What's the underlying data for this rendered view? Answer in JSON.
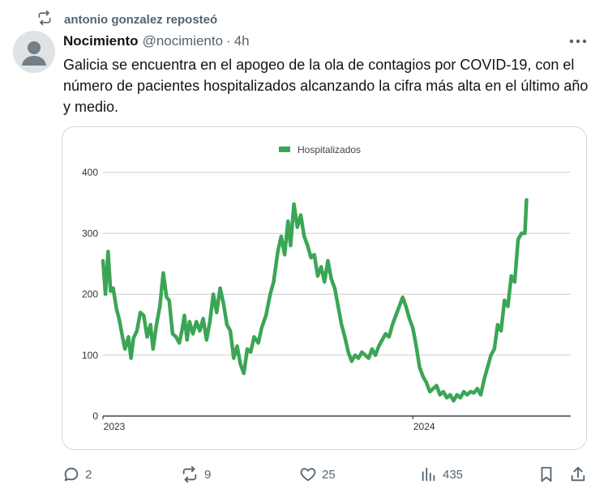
{
  "repost": {
    "label": "antonio gonzalez reposteó",
    "icon": "repost-icon"
  },
  "author": {
    "name": "Nocimiento",
    "handle": "@nocimiento",
    "separator": "·",
    "time": "4h",
    "avatar_icon": "default-avatar-icon"
  },
  "post": {
    "text": "Galicia se encuentra en el apogeo de la ola de contagios por COVID-19, con el número de pacientes hospitalizados alcanzando la cifra más alta en el último año y medio."
  },
  "actions": {
    "replies": "2",
    "reposts": "9",
    "likes": "25",
    "views": "435"
  },
  "colors": {
    "series": "#3aa655",
    "text_secondary": "#536471",
    "border": "#cfd9de"
  },
  "chart_data": {
    "type": "line",
    "title": "",
    "xlabel": "",
    "ylabel": "",
    "x_range": [
      "2023-01-01",
      "2024-07-05"
    ],
    "xtick_labels": [
      "2023",
      "2024"
    ],
    "xtick_dates": [
      "2023-01-01",
      "2024-01-01"
    ],
    "ylim": [
      0,
      400
    ],
    "yticks": [
      0,
      100,
      200,
      300,
      400
    ],
    "grid": true,
    "legend": "top-center",
    "series": [
      {
        "name": "Hospitalizados",
        "color": "#3aa655",
        "points": [
          [
            "2023-01-01",
            255
          ],
          [
            "2023-01-04",
            200
          ],
          [
            "2023-01-07",
            270
          ],
          [
            "2023-01-10",
            205
          ],
          [
            "2023-01-13",
            210
          ],
          [
            "2023-01-17",
            175
          ],
          [
            "2023-01-20",
            160
          ],
          [
            "2023-01-24",
            130
          ],
          [
            "2023-01-27",
            110
          ],
          [
            "2023-01-31",
            130
          ],
          [
            "2023-02-03",
            95
          ],
          [
            "2023-02-06",
            128
          ],
          [
            "2023-02-10",
            140
          ],
          [
            "2023-02-14",
            170
          ],
          [
            "2023-02-18",
            165
          ],
          [
            "2023-02-22",
            130
          ],
          [
            "2023-02-26",
            150
          ],
          [
            "2023-03-01",
            110
          ],
          [
            "2023-03-05",
            150
          ],
          [
            "2023-03-09",
            180
          ],
          [
            "2023-03-13",
            235
          ],
          [
            "2023-03-17",
            195
          ],
          [
            "2023-03-20",
            190
          ],
          [
            "2023-03-24",
            135
          ],
          [
            "2023-03-28",
            130
          ],
          [
            "2023-04-01",
            120
          ],
          [
            "2023-04-04",
            140
          ],
          [
            "2023-04-07",
            165
          ],
          [
            "2023-04-10",
            125
          ],
          [
            "2023-04-13",
            155
          ],
          [
            "2023-04-17",
            135
          ],
          [
            "2023-04-21",
            155
          ],
          [
            "2023-04-25",
            140
          ],
          [
            "2023-04-29",
            160
          ],
          [
            "2023-05-03",
            125
          ],
          [
            "2023-05-07",
            155
          ],
          [
            "2023-05-11",
            200
          ],
          [
            "2023-05-15",
            170
          ],
          [
            "2023-05-19",
            210
          ],
          [
            "2023-05-23",
            185
          ],
          [
            "2023-05-27",
            150
          ],
          [
            "2023-05-31",
            140
          ],
          [
            "2023-06-04",
            95
          ],
          [
            "2023-06-08",
            115
          ],
          [
            "2023-06-12",
            85
          ],
          [
            "2023-06-16",
            70
          ],
          [
            "2023-06-20",
            110
          ],
          [
            "2023-06-24",
            105
          ],
          [
            "2023-06-28",
            130
          ],
          [
            "2023-07-03",
            120
          ],
          [
            "2023-07-07",
            145
          ],
          [
            "2023-07-12",
            165
          ],
          [
            "2023-07-17",
            200
          ],
          [
            "2023-07-21",
            220
          ],
          [
            "2023-07-26",
            270
          ],
          [
            "2023-07-30",
            295
          ],
          [
            "2023-08-03",
            265
          ],
          [
            "2023-08-07",
            320
          ],
          [
            "2023-08-10",
            280
          ],
          [
            "2023-08-14",
            348
          ],
          [
            "2023-08-18",
            310
          ],
          [
            "2023-08-22",
            330
          ],
          [
            "2023-08-26",
            295
          ],
          [
            "2023-08-30",
            280
          ],
          [
            "2023-09-03",
            260
          ],
          [
            "2023-09-07",
            265
          ],
          [
            "2023-09-11",
            230
          ],
          [
            "2023-09-15",
            245
          ],
          [
            "2023-09-19",
            220
          ],
          [
            "2023-09-23",
            255
          ],
          [
            "2023-09-27",
            225
          ],
          [
            "2023-10-01",
            210
          ],
          [
            "2023-10-05",
            180
          ],
          [
            "2023-10-09",
            150
          ],
          [
            "2023-10-13",
            130
          ],
          [
            "2023-10-17",
            105
          ],
          [
            "2023-10-21",
            90
          ],
          [
            "2023-10-25",
            100
          ],
          [
            "2023-10-29",
            95
          ],
          [
            "2023-11-02",
            105
          ],
          [
            "2023-11-06",
            100
          ],
          [
            "2023-11-10",
            95
          ],
          [
            "2023-11-14",
            110
          ],
          [
            "2023-11-18",
            100
          ],
          [
            "2023-11-22",
            115
          ],
          [
            "2023-11-26",
            125
          ],
          [
            "2023-11-30",
            135
          ],
          [
            "2023-12-04",
            130
          ],
          [
            "2023-12-08",
            150
          ],
          [
            "2023-12-12",
            165
          ],
          [
            "2023-12-16",
            180
          ],
          [
            "2023-12-20",
            195
          ],
          [
            "2023-12-24",
            180
          ],
          [
            "2023-12-28",
            160
          ],
          [
            "2024-01-01",
            145
          ],
          [
            "2024-01-05",
            115
          ],
          [
            "2024-01-09",
            80
          ],
          [
            "2024-01-13",
            65
          ],
          [
            "2024-01-17",
            55
          ],
          [
            "2024-01-21",
            40
          ],
          [
            "2024-01-25",
            45
          ],
          [
            "2024-01-29",
            50
          ],
          [
            "2024-02-02",
            35
          ],
          [
            "2024-02-06",
            40
          ],
          [
            "2024-02-10",
            30
          ],
          [
            "2024-02-14",
            35
          ],
          [
            "2024-02-18",
            25
          ],
          [
            "2024-02-22",
            35
          ],
          [
            "2024-02-26",
            30
          ],
          [
            "2024-03-01",
            40
          ],
          [
            "2024-03-05",
            35
          ],
          [
            "2024-03-09",
            40
          ],
          [
            "2024-03-13",
            38
          ],
          [
            "2024-03-17",
            45
          ],
          [
            "2024-03-21",
            35
          ],
          [
            "2024-03-25",
            60
          ],
          [
            "2024-03-29",
            80
          ],
          [
            "2024-04-02",
            100
          ],
          [
            "2024-04-06",
            110
          ],
          [
            "2024-04-10",
            150
          ],
          [
            "2024-04-14",
            140
          ],
          [
            "2024-04-18",
            190
          ],
          [
            "2024-04-22",
            180
          ],
          [
            "2024-04-26",
            230
          ],
          [
            "2024-04-30",
            220
          ],
          [
            "2024-05-04",
            290
          ],
          [
            "2024-05-08",
            300
          ],
          [
            "2024-05-12",
            300
          ],
          [
            "2024-05-14",
            355
          ]
        ]
      }
    ]
  }
}
